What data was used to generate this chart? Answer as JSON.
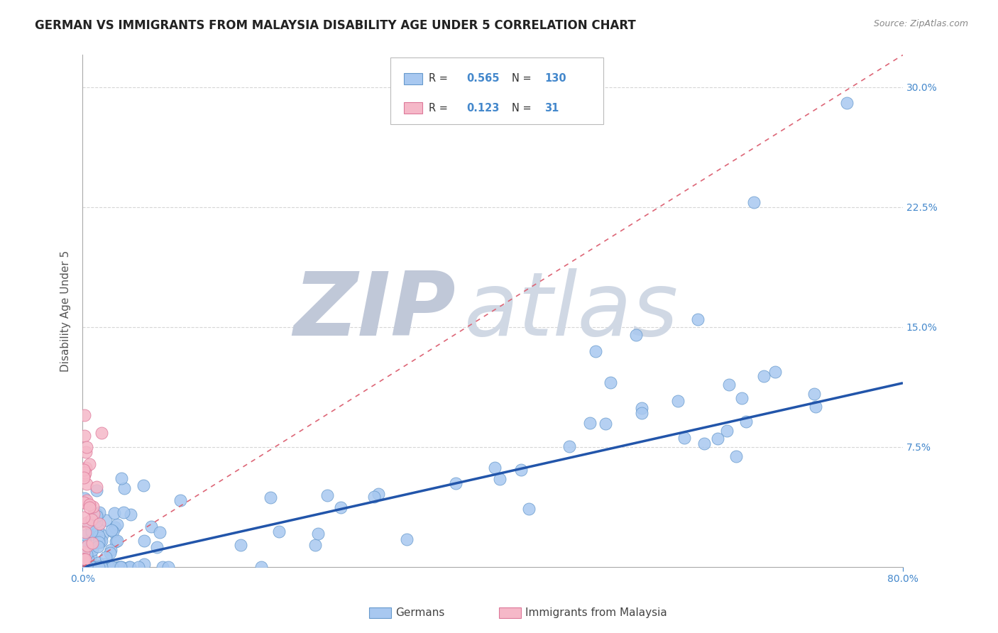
{
  "title": "GERMAN VS IMMIGRANTS FROM MALAYSIA DISABILITY AGE UNDER 5 CORRELATION CHART",
  "source": "Source: ZipAtlas.com",
  "ylabel": "Disability Age Under 5",
  "xlim": [
    0.0,
    0.8
  ],
  "ylim": [
    0.0,
    0.32
  ],
  "ytick_positions": [
    0.075,
    0.15,
    0.225,
    0.3
  ],
  "ytick_labels": [
    "7.5%",
    "15.0%",
    "22.5%",
    "30.0%"
  ],
  "german_R": 0.565,
  "german_N": 130,
  "malaysia_R": 0.123,
  "malaysia_N": 31,
  "german_color": "#a8c8f0",
  "german_edge_color": "#6699cc",
  "malaysia_color": "#f5b8c8",
  "malaysia_edge_color": "#dd7799",
  "trendline_german_color": "#2255aa",
  "trendline_malaysia_color": "#dd6677",
  "background_color": "#ffffff",
  "grid_color": "#cccccc",
  "title_color": "#222222",
  "title_fontsize": 12,
  "tick_color": "#4488cc",
  "ylabel_color": "#555555",
  "source_color": "#888888",
  "legend_box_edge": "#bbbbbb",
  "legend_R_color": "#4488cc",
  "legend_N_color": "#4488cc",
  "watermark_zip_color": "#c0c8d8",
  "watermark_atlas_color": "#d0d8e4",
  "german_trend_x0": 0.0,
  "german_trend_x1": 0.8,
  "german_trend_y0": 0.0,
  "german_trend_y1": 0.115,
  "malaysia_trend_x0": 0.0,
  "malaysia_trend_x1": 0.8,
  "malaysia_trend_y0": 0.0,
  "malaysia_trend_y1": 0.32
}
